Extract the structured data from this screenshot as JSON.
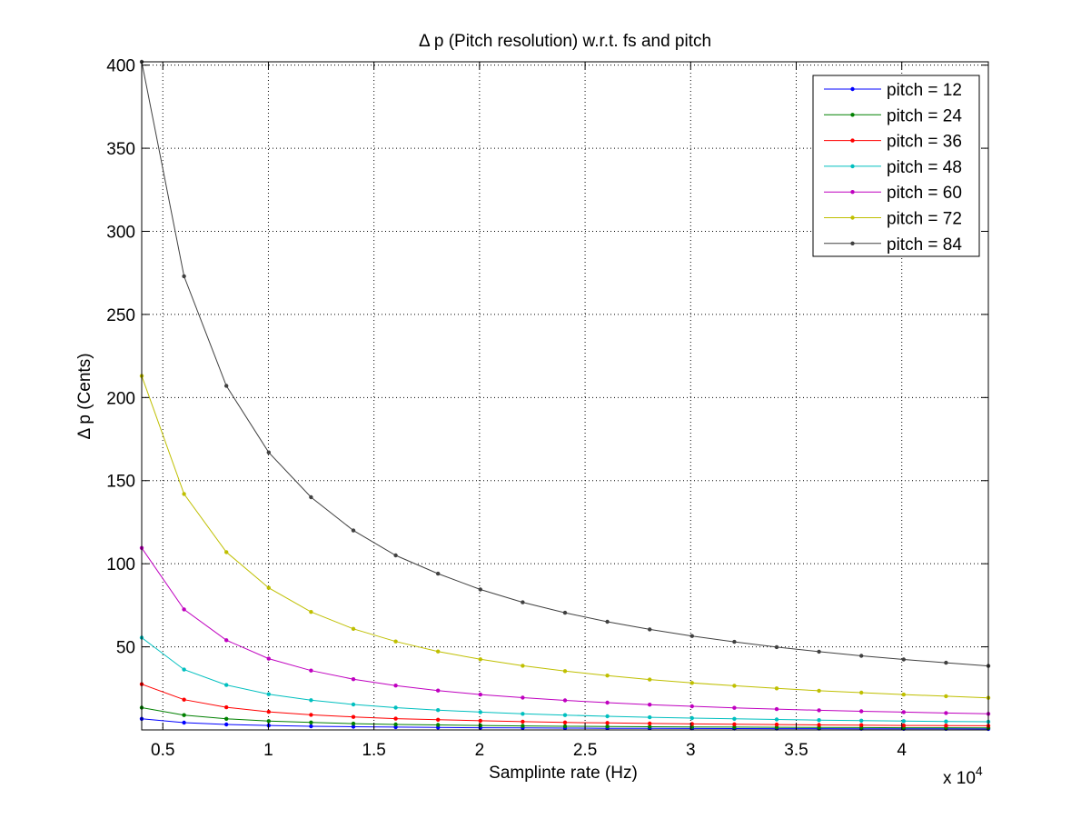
{
  "chart_data": {
    "type": "line",
    "title": "Δ p (Pitch resolution) w.r.t. fs and pitch",
    "xlabel": "Samplinte rate (Hz)",
    "ylabel": "Δ p (Cents)",
    "x_exponent_label": "x 10",
    "x_exponent_power": "4",
    "xlim": [
      4000,
      44100
    ],
    "ylim": [
      0,
      402
    ],
    "grid": true,
    "legend_position": "top-right",
    "x_ticks": [
      5000,
      10000,
      15000,
      20000,
      25000,
      30000,
      35000,
      40000
    ],
    "x_tick_labels": [
      "0.5",
      "1",
      "1.5",
      "2",
      "2.5",
      "3",
      "3.5",
      "4"
    ],
    "y_ticks": [
      50,
      100,
      150,
      200,
      250,
      300,
      350,
      400
    ],
    "y_tick_labels": [
      "50",
      "100",
      "150",
      "200",
      "250",
      "300",
      "350",
      "400"
    ],
    "x": [
      4000,
      6005,
      8010,
      10015,
      12020,
      14025,
      16030,
      18035,
      20040,
      22045,
      24050,
      26055,
      28060,
      30065,
      32070,
      34075,
      36080,
      38085,
      40090,
      42095,
      44100
    ],
    "series": [
      {
        "name": "pitch = 12",
        "color": "#0000ff",
        "values": [
          6.7,
          4.4,
          3.3,
          2.7,
          2.2,
          1.9,
          1.7,
          1.5,
          1.3,
          1.2,
          1.1,
          1.0,
          0.96,
          0.89,
          0.84,
          0.79,
          0.74,
          0.7,
          0.67,
          0.64,
          0.61
        ]
      },
      {
        "name": "pitch = 24",
        "color": "#008000",
        "values": [
          13.4,
          8.9,
          6.7,
          5.3,
          4.5,
          3.8,
          3.3,
          3.0,
          2.7,
          2.4,
          2.2,
          2.1,
          1.9,
          1.8,
          1.7,
          1.6,
          1.5,
          1.4,
          1.3,
          1.3,
          1.2
        ]
      },
      {
        "name": "pitch = 36",
        "color": "#ff0000",
        "values": [
          27.5,
          18.2,
          13.6,
          10.9,
          9.1,
          7.8,
          6.8,
          6.1,
          5.5,
          5.0,
          4.5,
          4.2,
          3.9,
          3.6,
          3.4,
          3.2,
          3.0,
          2.9,
          2.7,
          2.6,
          2.5
        ]
      },
      {
        "name": "pitch = 48",
        "color": "#00bfbf",
        "values": [
          55.5,
          36.3,
          27.0,
          21.5,
          17.9,
          15.3,
          13.4,
          11.9,
          10.7,
          9.7,
          8.9,
          8.2,
          7.6,
          7.1,
          6.7,
          6.3,
          5.9,
          5.6,
          5.3,
          5.1,
          4.9
        ]
      },
      {
        "name": "pitch = 60",
        "color": "#bf00bf",
        "values": [
          109.5,
          72.5,
          54.0,
          42.9,
          35.7,
          30.5,
          26.7,
          23.7,
          21.3,
          19.4,
          17.8,
          16.4,
          15.2,
          14.2,
          13.3,
          12.5,
          11.8,
          11.2,
          10.7,
          10.2,
          9.7
        ]
      },
      {
        "name": "pitch = 72",
        "color": "#bfbf00",
        "values": [
          213,
          142,
          107,
          85.5,
          71.0,
          60.8,
          53.2,
          47.2,
          42.5,
          38.6,
          35.4,
          32.7,
          30.3,
          28.3,
          26.6,
          25.0,
          23.6,
          22.4,
          21.3,
          20.3,
          19.3
        ]
      },
      {
        "name": "pitch = 84",
        "color": "#404040",
        "values": [
          402,
          273,
          207,
          167,
          140,
          120,
          105,
          94,
          84.5,
          76.8,
          70.5,
          65.1,
          60.5,
          56.5,
          53.0,
          49.8,
          47.1,
          44.6,
          42.4,
          40.4,
          38.5
        ]
      }
    ]
  }
}
